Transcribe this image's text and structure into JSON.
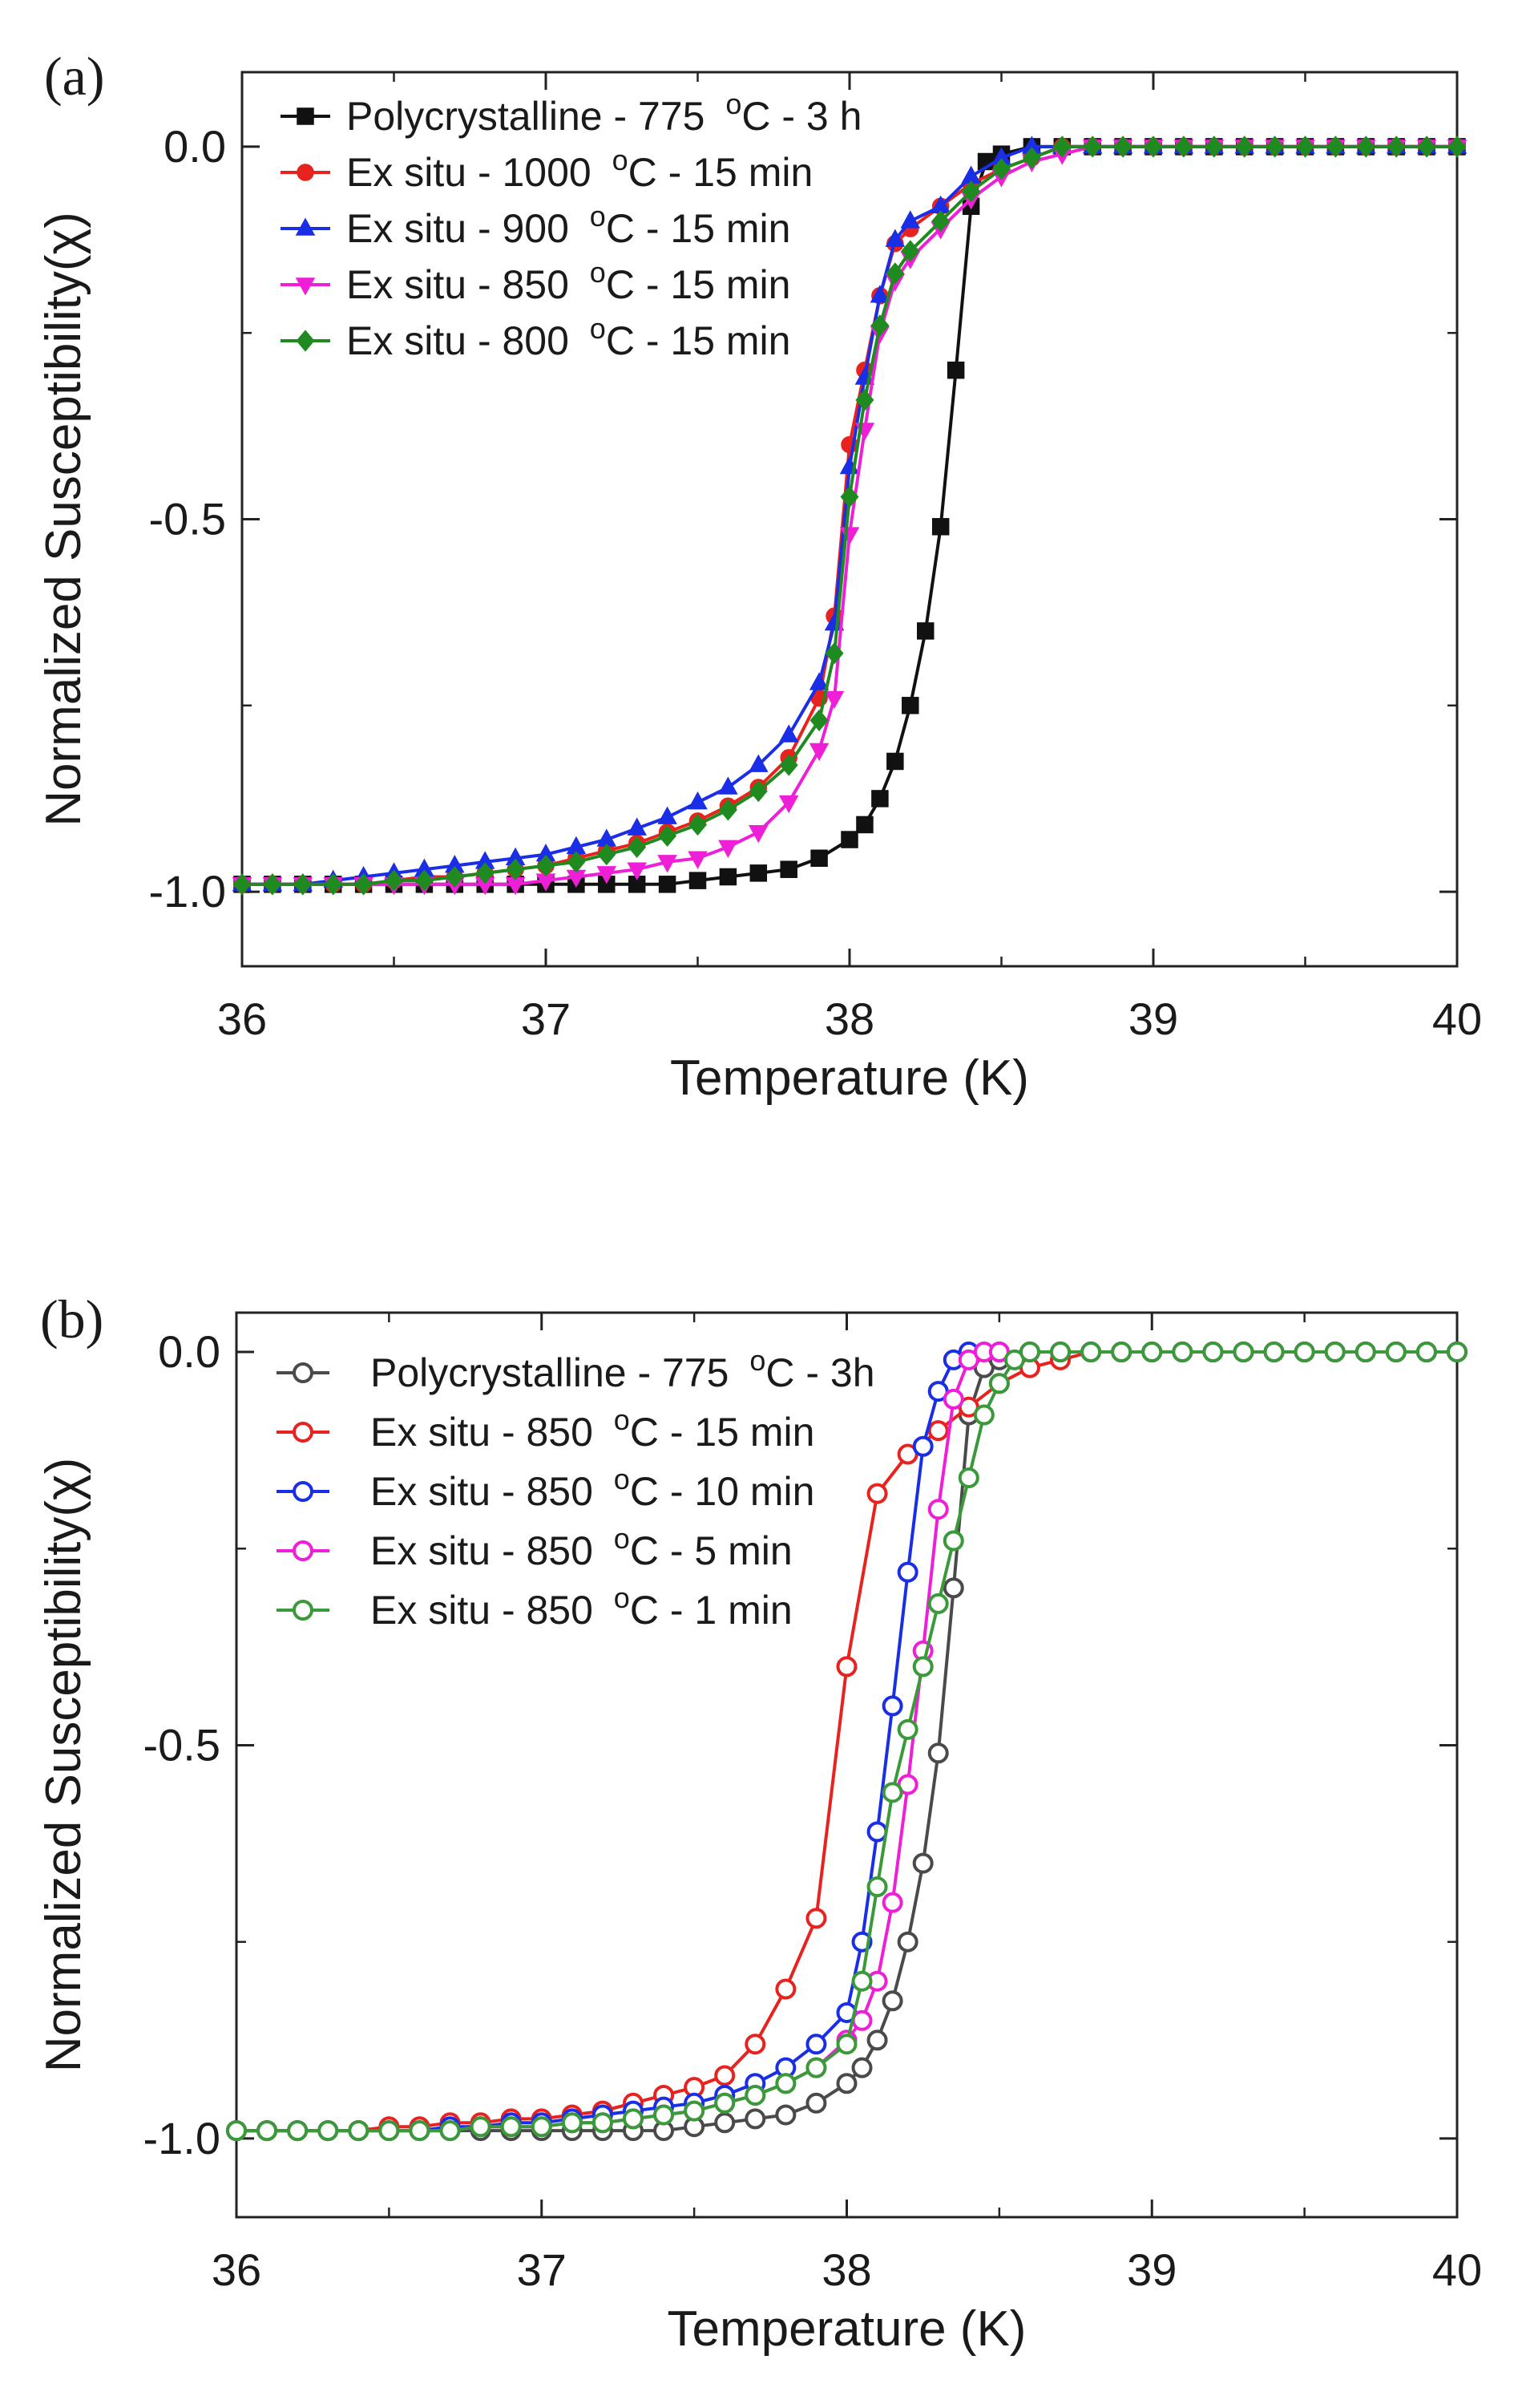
{
  "chart_data": [
    {
      "type": "line",
      "panel_label": "(a)",
      "xlabel": "Temperature (K)",
      "ylabel": "Normalized Susceptibility(χ)",
      "xlim": [
        36,
        40
      ],
      "ylim": [
        -1.1,
        0.1
      ],
      "xticks": [
        36,
        37,
        38,
        39,
        40
      ],
      "xtick_labels": [
        "36",
        "37",
        "38",
        "39",
        "40"
      ],
      "yticks": [
        0.0,
        -0.5,
        -1.0
      ],
      "ytick_labels": [
        "0.0",
        "-0.5",
        "-1.0"
      ],
      "legend_position": "top-left",
      "marker_fill": "filled",
      "series": [
        {
          "name": "Polycrystalline - 775",
          "unit": "C",
          "unit_sup": "o",
          "suffix": "- 3 h",
          "color": "#111111",
          "marker": "square",
          "x": [
            36,
            36.1,
            36.2,
            36.3,
            36.4,
            36.5,
            36.6,
            36.7,
            36.8,
            36.9,
            37,
            37.1,
            37.2,
            37.3,
            37.4,
            37.5,
            37.6,
            37.7,
            37.8,
            37.9,
            38,
            38.05,
            38.1,
            38.15,
            38.2,
            38.25,
            38.3,
            38.35,
            38.4,
            38.45,
            38.5,
            38.6,
            38.7,
            38.8,
            38.9,
            39,
            39.1,
            39.2,
            39.3,
            39.4,
            39.5,
            39.6,
            39.7,
            39.8,
            39.9,
            40
          ],
          "y": [
            -0.99,
            -0.99,
            -0.99,
            -0.99,
            -0.99,
            -0.99,
            -0.99,
            -0.99,
            -0.99,
            -0.99,
            -0.99,
            -0.99,
            -0.99,
            -0.99,
            -0.99,
            -0.985,
            -0.98,
            -0.975,
            -0.97,
            -0.955,
            -0.93,
            -0.91,
            -0.875,
            -0.825,
            -0.75,
            -0.65,
            -0.51,
            -0.3,
            -0.08,
            -0.02,
            -0.01,
            0,
            0,
            0,
            0,
            0,
            0,
            0,
            0,
            0,
            0,
            0,
            0,
            0,
            0,
            0
          ]
        },
        {
          "name": "Ex situ - 1000",
          "unit": "C",
          "unit_sup": "o",
          "suffix": "- 15 min",
          "color": "#e8221e",
          "marker": "circle",
          "x": [
            36,
            36.1,
            36.2,
            36.3,
            36.4,
            36.5,
            36.6,
            36.7,
            36.8,
            36.9,
            37,
            37.1,
            37.2,
            37.3,
            37.4,
            37.5,
            37.6,
            37.7,
            37.8,
            37.9,
            37.95,
            38,
            38.05,
            38.1,
            38.15,
            38.2,
            38.3,
            38.4,
            38.5,
            38.6,
            38.7,
            38.8,
            38.9,
            39,
            39.1,
            39.2,
            39.3,
            39.4,
            39.5,
            39.6,
            39.7,
            39.8,
            39.9,
            40
          ],
          "y": [
            -0.99,
            -0.99,
            -0.99,
            -0.99,
            -0.99,
            -0.985,
            -0.98,
            -0.98,
            -0.975,
            -0.97,
            -0.965,
            -0.955,
            -0.945,
            -0.935,
            -0.92,
            -0.905,
            -0.885,
            -0.86,
            -0.82,
            -0.74,
            -0.63,
            -0.4,
            -0.3,
            -0.2,
            -0.13,
            -0.11,
            -0.08,
            -0.05,
            -0.03,
            -0.015,
            0,
            0,
            0,
            0,
            0,
            0,
            0,
            0,
            0,
            0,
            0,
            0,
            0,
            0
          ]
        },
        {
          "name": "Ex situ - 900",
          "unit": "C",
          "unit_sup": "o",
          "suffix": "- 15 min",
          "color": "#1a2ee6",
          "marker": "triangle-up",
          "x": [
            36,
            36.1,
            36.2,
            36.3,
            36.4,
            36.5,
            36.6,
            36.7,
            36.8,
            36.9,
            37,
            37.1,
            37.2,
            37.3,
            37.4,
            37.5,
            37.6,
            37.7,
            37.8,
            37.9,
            37.95,
            38,
            38.05,
            38.1,
            38.15,
            38.2,
            38.3,
            38.4,
            38.5,
            38.6,
            38.7,
            38.8,
            38.9,
            39,
            39.1,
            39.2,
            39.3,
            39.4,
            39.5,
            39.6,
            39.7,
            39.8,
            39.9,
            40
          ],
          "y": [
            -0.99,
            -0.99,
            -0.99,
            -0.985,
            -0.98,
            -0.975,
            -0.97,
            -0.965,
            -0.96,
            -0.955,
            -0.95,
            -0.94,
            -0.93,
            -0.915,
            -0.9,
            -0.88,
            -0.86,
            -0.83,
            -0.79,
            -0.72,
            -0.64,
            -0.43,
            -0.31,
            -0.2,
            -0.125,
            -0.1,
            -0.08,
            -0.04,
            -0.015,
            0,
            0,
            0,
            0,
            0,
            0,
            0,
            0,
            0,
            0,
            0,
            0,
            0,
            0,
            0
          ]
        },
        {
          "name": "Ex situ -  850",
          "unit": "C",
          "unit_sup": "o",
          "suffix": "- 15 min",
          "color": "#ee1fd6",
          "marker": "triangle-down",
          "x": [
            36,
            36.1,
            36.2,
            36.3,
            36.4,
            36.5,
            36.6,
            36.7,
            36.8,
            36.9,
            37,
            37.1,
            37.2,
            37.3,
            37.4,
            37.5,
            37.6,
            37.7,
            37.8,
            37.9,
            37.95,
            38,
            38.05,
            38.1,
            38.15,
            38.2,
            38.3,
            38.4,
            38.5,
            38.6,
            38.7,
            38.8,
            38.9,
            39,
            39.1,
            39.2,
            39.3,
            39.4,
            39.5,
            39.6,
            39.7,
            39.8,
            39.9,
            40
          ],
          "y": [
            -0.99,
            -0.99,
            -0.99,
            -0.99,
            -0.99,
            -0.99,
            -0.99,
            -0.99,
            -0.99,
            -0.99,
            -0.985,
            -0.98,
            -0.975,
            -0.97,
            -0.96,
            -0.955,
            -0.94,
            -0.92,
            -0.88,
            -0.81,
            -0.74,
            -0.52,
            -0.38,
            -0.25,
            -0.18,
            -0.15,
            -0.11,
            -0.07,
            -0.04,
            -0.02,
            -0.01,
            0,
            0,
            0,
            0,
            0,
            0,
            0,
            0,
            0,
            0,
            0,
            0,
            0
          ]
        },
        {
          "name": "Ex situ - 800",
          "unit": "C",
          "unit_sup": "o",
          "suffix": "- 15 min",
          "color": "#1f8a1f",
          "marker": "diamond",
          "x": [
            36,
            36.1,
            36.2,
            36.3,
            36.4,
            36.5,
            36.6,
            36.7,
            36.8,
            36.9,
            37,
            37.1,
            37.2,
            37.3,
            37.4,
            37.5,
            37.6,
            37.7,
            37.8,
            37.9,
            37.95,
            38,
            38.05,
            38.1,
            38.15,
            38.2,
            38.3,
            38.4,
            38.5,
            38.6,
            38.7,
            38.8,
            38.9,
            39,
            39.1,
            39.2,
            39.3,
            39.4,
            39.5,
            39.6,
            39.7,
            39.8,
            39.9,
            40
          ],
          "y": [
            -0.99,
            -0.99,
            -0.99,
            -0.99,
            -0.99,
            -0.985,
            -0.985,
            -0.98,
            -0.975,
            -0.97,
            -0.965,
            -0.96,
            -0.95,
            -0.94,
            -0.925,
            -0.91,
            -0.89,
            -0.865,
            -0.83,
            -0.77,
            -0.68,
            -0.47,
            -0.34,
            -0.24,
            -0.17,
            -0.14,
            -0.1,
            -0.06,
            -0.03,
            -0.015,
            0,
            0,
            0,
            0,
            0,
            0,
            0,
            0,
            0,
            0,
            0,
            0,
            0,
            0
          ]
        }
      ]
    },
    {
      "type": "line",
      "panel_label": "(b)",
      "xlabel": "Temperature (K)",
      "ylabel": "Normalized Susceptibility(χ)",
      "xlim": [
        36,
        40
      ],
      "ylim": [
        -1.1,
        0.05
      ],
      "xticks": [
        36,
        37,
        38,
        39,
        40
      ],
      "xtick_labels": [
        "36",
        "37",
        "38",
        "39",
        "40"
      ],
      "yticks": [
        0.0,
        -0.5,
        -1.0
      ],
      "ytick_labels": [
        "0.0",
        "-0.5",
        "-1.0"
      ],
      "legend_position": "top-left",
      "marker_fill": "open",
      "series": [
        {
          "name": "Polycrystalline - 775",
          "unit": "C",
          "unit_sup": "o",
          "suffix": "- 3h",
          "color": "#4a4a4a",
          "marker": "circle",
          "x": [
            36,
            36.1,
            36.2,
            36.3,
            36.4,
            36.5,
            36.6,
            36.7,
            36.8,
            36.9,
            37,
            37.1,
            37.2,
            37.3,
            37.4,
            37.5,
            37.6,
            37.7,
            37.8,
            37.9,
            38,
            38.05,
            38.1,
            38.15,
            38.2,
            38.25,
            38.3,
            38.35,
            38.4,
            38.45,
            38.5,
            38.6,
            38.7,
            38.8,
            38.9,
            39,
            39.1,
            39.2,
            39.3,
            39.4,
            39.5,
            39.6,
            39.7,
            39.8,
            39.9,
            40
          ],
          "y": [
            -0.99,
            -0.99,
            -0.99,
            -0.99,
            -0.99,
            -0.99,
            -0.99,
            -0.99,
            -0.99,
            -0.99,
            -0.99,
            -0.99,
            -0.99,
            -0.99,
            -0.99,
            -0.985,
            -0.98,
            -0.975,
            -0.97,
            -0.955,
            -0.93,
            -0.91,
            -0.875,
            -0.825,
            -0.75,
            -0.65,
            -0.51,
            -0.3,
            -0.08,
            -0.02,
            -0.01,
            0,
            0,
            0,
            0,
            0,
            0,
            0,
            0,
            0,
            0,
            0,
            0,
            0,
            0,
            0
          ]
        },
        {
          "name": "Ex situ - 850",
          "unit": "C",
          "unit_sup": "o",
          "suffix": "- 15 min",
          "color": "#e8221e",
          "marker": "circle",
          "x": [
            36,
            36.1,
            36.2,
            36.3,
            36.4,
            36.5,
            36.6,
            36.7,
            36.8,
            36.9,
            37,
            37.1,
            37.2,
            37.3,
            37.4,
            37.5,
            37.6,
            37.7,
            37.8,
            37.9,
            38,
            38.1,
            38.2,
            38.3,
            38.4,
            38.5,
            38.6,
            38.7,
            38.8,
            38.9,
            39,
            39.1,
            39.2,
            39.3,
            39.4,
            39.5,
            39.6,
            39.7,
            39.8,
            39.9,
            40
          ],
          "y": [
            -0.99,
            -0.99,
            -0.99,
            -0.99,
            -0.99,
            -0.985,
            -0.985,
            -0.98,
            -0.98,
            -0.975,
            -0.975,
            -0.97,
            -0.965,
            -0.955,
            -0.945,
            -0.935,
            -0.92,
            -0.88,
            -0.81,
            -0.72,
            -0.4,
            -0.18,
            -0.13,
            -0.1,
            -0.07,
            -0.04,
            -0.02,
            -0.01,
            0,
            0,
            0,
            0,
            0,
            0,
            0,
            0,
            0,
            0,
            0,
            0,
            0
          ]
        },
        {
          "name": "Ex situ - 850",
          "unit": "C",
          "unit_sup": "o",
          "suffix": "- 10 min",
          "color": "#1a2ee6",
          "marker": "circle",
          "x": [
            36,
            36.1,
            36.2,
            36.3,
            36.4,
            36.5,
            36.6,
            36.7,
            36.8,
            36.9,
            37,
            37.1,
            37.2,
            37.3,
            37.4,
            37.5,
            37.6,
            37.7,
            37.8,
            37.9,
            38,
            38.05,
            38.1,
            38.15,
            38.2,
            38.25,
            38.3,
            38.35,
            38.4,
            38.5,
            38.6,
            38.7,
            38.8,
            38.9,
            39,
            39.1,
            39.2,
            39.3,
            39.4,
            39.5,
            39.6,
            39.7,
            39.8,
            39.9,
            40
          ],
          "y": [
            -0.99,
            -0.99,
            -0.99,
            -0.99,
            -0.99,
            -0.99,
            -0.99,
            -0.985,
            -0.985,
            -0.98,
            -0.98,
            -0.975,
            -0.97,
            -0.965,
            -0.96,
            -0.955,
            -0.945,
            -0.93,
            -0.91,
            -0.88,
            -0.84,
            -0.75,
            -0.61,
            -0.45,
            -0.28,
            -0.12,
            -0.05,
            -0.01,
            0,
            0,
            0,
            0,
            0,
            0,
            0,
            0,
            0,
            0,
            0,
            0,
            0,
            0,
            0,
            0,
            0
          ]
        },
        {
          "name": "Ex situ - 850",
          "unit": "C",
          "unit_sup": "o",
          "suffix": "- 5 min",
          "color": "#ee1fd6",
          "marker": "circle",
          "x": [
            36,
            36.1,
            36.2,
            36.3,
            36.4,
            36.5,
            36.6,
            36.7,
            36.8,
            36.9,
            37,
            37.1,
            37.2,
            37.3,
            37.4,
            37.5,
            37.6,
            37.7,
            37.8,
            37.9,
            38,
            38.05,
            38.1,
            38.15,
            38.2,
            38.25,
            38.3,
            38.35,
            38.4,
            38.45,
            38.5,
            38.6,
            38.7,
            38.8,
            38.9,
            39,
            39.1,
            39.2,
            39.3,
            39.4,
            39.5,
            39.6,
            39.7,
            39.8,
            39.9,
            40
          ],
          "y": [
            -0.99,
            -0.99,
            -0.99,
            -0.99,
            -0.99,
            -0.99,
            -0.99,
            -0.99,
            -0.985,
            -0.985,
            -0.985,
            -0.98,
            -0.98,
            -0.975,
            -0.97,
            -0.965,
            -0.955,
            -0.945,
            -0.93,
            -0.91,
            -0.875,
            -0.85,
            -0.8,
            -0.7,
            -0.55,
            -0.38,
            -0.2,
            -0.06,
            -0.01,
            0,
            0,
            0,
            0,
            0,
            0,
            0,
            0,
            0,
            0,
            0,
            0,
            0,
            0,
            0,
            0,
            0
          ]
        },
        {
          "name": "Ex situ - 850",
          "unit": "C",
          "unit_sup": "o",
          "suffix": "- 1 min",
          "color": "#3a9a3a",
          "marker": "circle",
          "x": [
            36,
            36.1,
            36.2,
            36.3,
            36.4,
            36.5,
            36.6,
            36.7,
            36.8,
            36.9,
            37,
            37.1,
            37.2,
            37.3,
            37.4,
            37.5,
            37.6,
            37.7,
            37.8,
            37.9,
            38,
            38.05,
            38.1,
            38.15,
            38.2,
            38.25,
            38.3,
            38.35,
            38.4,
            38.45,
            38.5,
            38.55,
            38.6,
            38.7,
            38.8,
            38.9,
            39,
            39.1,
            39.2,
            39.3,
            39.4,
            39.5,
            39.6,
            39.7,
            39.8,
            39.9,
            40
          ],
          "y": [
            -0.99,
            -0.99,
            -0.99,
            -0.99,
            -0.99,
            -0.99,
            -0.99,
            -0.99,
            -0.985,
            -0.985,
            -0.985,
            -0.98,
            -0.98,
            -0.975,
            -0.97,
            -0.965,
            -0.955,
            -0.945,
            -0.93,
            -0.91,
            -0.88,
            -0.8,
            -0.68,
            -0.56,
            -0.48,
            -0.4,
            -0.32,
            -0.24,
            -0.16,
            -0.08,
            -0.04,
            -0.01,
            0,
            0,
            0,
            0,
            0,
            0,
            0,
            0,
            0,
            0,
            0,
            0,
            0,
            0,
            0
          ]
        }
      ]
    }
  ]
}
